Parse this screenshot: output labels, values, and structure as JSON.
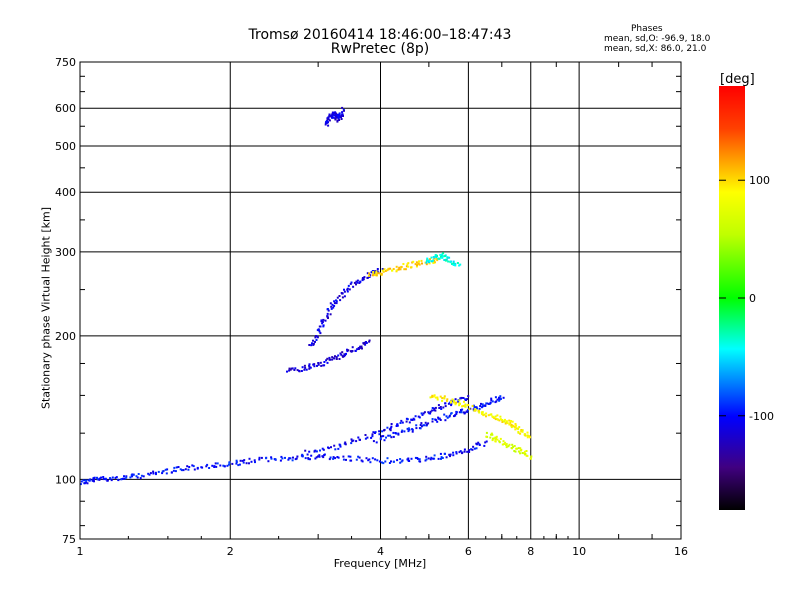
{
  "header": {
    "title": "Tromsø 20160414 18:46:00–18:47:43",
    "subtitle": "RwPretec (8p)"
  },
  "phases": {
    "heading": "Phases",
    "line_o": "mean, sd,O: -96.9, 18.0",
    "line_x": "mean, sd,X:  86.0, 21.0"
  },
  "colorbar": {
    "label": "[deg]",
    "ticks": [
      "100",
      "0",
      "-100"
    ],
    "tick_values": [
      100,
      0,
      -100
    ],
    "range": [
      -180,
      180
    ]
  },
  "chart_data": {
    "type": "scatter",
    "title": "Tromsø 20160414 18:46:00–18:47:43",
    "subtitle": "RwPretec (8p)",
    "xlabel": "Frequency [MHz]",
    "ylabel": "Stationary phase Virtual Height [km]",
    "xscale": "log",
    "yscale": "log",
    "xlim": [
      1,
      16
    ],
    "ylim": [
      75,
      750
    ],
    "grid": true,
    "xticks": [
      1,
      2,
      4,
      6,
      8,
      10,
      16
    ],
    "xtick_labels": [
      "1",
      "2",
      "4",
      "6",
      "8",
      "10",
      "16"
    ],
    "yticks": [
      75,
      100,
      200,
      300,
      400,
      500,
      600,
      750
    ],
    "ytick_labels": [
      "75",
      "100",
      "200",
      "300",
      "400",
      "500",
      "600",
      "750"
    ],
    "colorbar_label": "[deg]",
    "color_by": "phase (deg)",
    "traces": [
      {
        "x": [
          1.0,
          1.05,
          1.1,
          1.2,
          1.3,
          1.45,
          1.6,
          1.8,
          2.0,
          2.2,
          2.5,
          2.8,
          3.1,
          3.5,
          4.0,
          4.5,
          5.0,
          5.5,
          6.0,
          6.5
        ],
        "y": [
          99,
          100,
          101,
          101,
          102,
          104,
          106,
          107,
          108,
          110,
          111,
          112,
          112,
          111,
          110,
          110,
          111,
          113,
          116,
          120
        ],
        "phase": -100
      },
      {
        "x": [
          2.8,
          3.2,
          3.6,
          4.0,
          4.4,
          4.8,
          5.2,
          5.6,
          6.0
        ],
        "y": [
          114,
          117,
          122,
          127,
          132,
          137,
          142,
          147,
          150
        ],
        "phase": -105
      },
      {
        "x": [
          3.9,
          4.3,
          4.7,
          5.1,
          5.5,
          5.9,
          6.3,
          6.7,
          7.0
        ],
        "y": [
          121,
          125,
          129,
          133,
          137,
          140,
          143,
          147,
          150
        ],
        "phase": -100
      },
      {
        "x": [
          2.9,
          3.0,
          3.1,
          3.2,
          3.4,
          3.6,
          3.8,
          4.0
        ],
        "y": [
          190,
          205,
          220,
          235,
          250,
          262,
          270,
          276
        ],
        "phase": -110
      },
      {
        "x": [
          2.6,
          2.8,
          3.0,
          3.2,
          3.4,
          3.6,
          3.8
        ],
        "y": [
          170,
          172,
          175,
          180,
          185,
          190,
          195
        ],
        "phase": -115
      },
      {
        "x": [
          3.8,
          4.0,
          4.3,
          4.6,
          4.9,
          5.2
        ],
        "y": [
          270,
          273,
          278,
          283,
          287,
          290
        ],
        "phase": 100
      },
      {
        "x": [
          4.9,
          5.1,
          5.3,
          5.5,
          5.7
        ],
        "y": [
          287,
          292,
          296,
          290,
          280
        ],
        "phase": -40
      },
      {
        "x": [
          5.0,
          5.4,
          5.8,
          6.2,
          6.6,
          7.0,
          7.3,
          7.6,
          7.9
        ],
        "y": [
          150,
          148,
          145,
          140,
          137,
          134,
          131,
          127,
          124
        ],
        "phase": 90
      },
      {
        "x": [
          6.5,
          6.8,
          7.2,
          7.6,
          8.0
        ],
        "y": [
          125,
          122,
          118,
          115,
          112
        ],
        "phase": 70
      },
      {
        "x": [
          3.1,
          3.15,
          3.2,
          3.25,
          3.3,
          3.35
        ],
        "y": [
          560,
          575,
          590,
          580,
          570,
          600
        ],
        "phase": -110
      }
    ]
  }
}
